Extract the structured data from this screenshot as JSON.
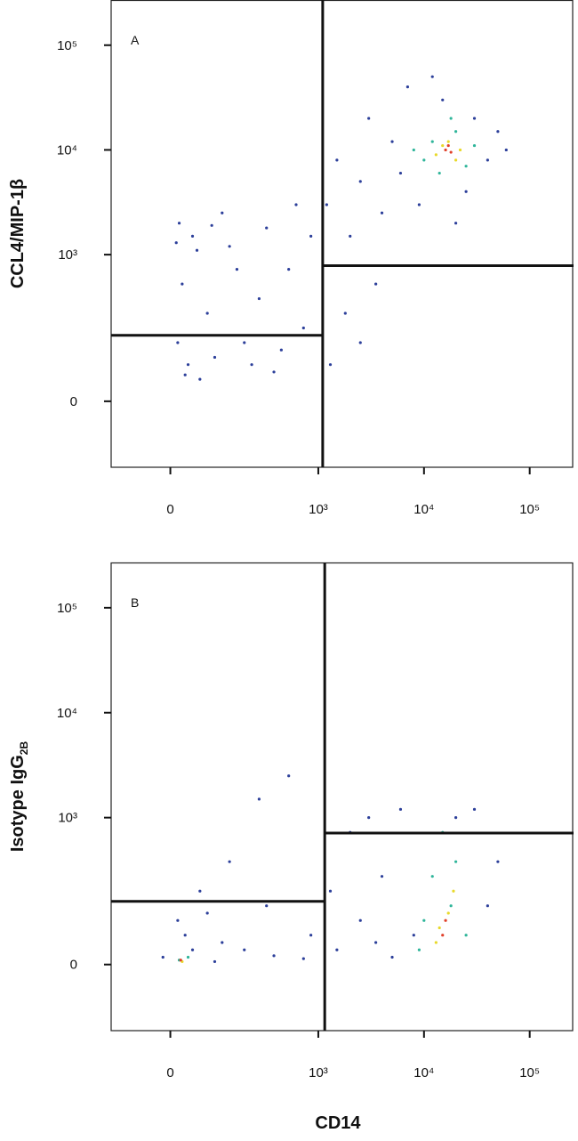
{
  "chart_data": [
    {
      "type": "scatter",
      "panel_label": "A",
      "ylabel": "CCL4/MIP-1β",
      "xscale": "biexponential",
      "yscale": "biexponential",
      "xlim": [
        -400,
        260000
      ],
      "ylim": [
        -450,
        270000
      ],
      "xticks": [
        0,
        {
          "value": 1000,
          "label": "10³"
        },
        {
          "value": 10000,
          "label": "10⁴"
        },
        {
          "value": 100000,
          "label": "10⁵"
        }
      ],
      "yticks": [
        0,
        {
          "value": 1000,
          "label": "10³"
        },
        {
          "value": 10000,
          "label": "10⁴"
        },
        {
          "value": 100000,
          "label": "10⁵"
        }
      ],
      "gates": {
        "x": 1100,
        "y_left": 450,
        "y_right": 925
      },
      "series": [
        {
          "color": "#2c3f9a",
          "x": [
            60,
            150,
            80,
            250,
            400,
            600,
            800,
            300,
            120,
            500,
            700,
            200,
            900,
            350,
            50,
            650,
            450,
            180,
            750,
            950,
            100,
            550,
            280,
            850,
            40,
            1500,
            2500,
            3000,
            5000,
            7000,
            1200,
            2000,
            4000,
            6000,
            9000,
            30000,
            40000,
            25000,
            50000,
            15000,
            12000,
            1800,
            2500,
            1300,
            3500,
            60000,
            20000
          ],
          "y": [
            2000,
            1500,
            800,
            600,
            1200,
            700,
            900,
            300,
            250,
            400,
            200,
            150,
            500,
            2500,
            400,
            1800,
            900,
            1100,
            350,
            1500,
            180,
            250,
            1900,
            3000,
            1300,
            8000,
            5000,
            20000,
            12000,
            40000,
            3000,
            1500,
            2500,
            6000,
            3000,
            20000,
            8000,
            4000,
            15000,
            30000,
            50000,
            600,
            400,
            250,
            800,
            10000,
            2000
          ]
        },
        {
          "color": "#2fb59a",
          "x": [
            10000,
            12000,
            20000,
            25000,
            8000,
            14000,
            18000,
            30000
          ],
          "y": [
            8000,
            12000,
            15000,
            7000,
            10000,
            6000,
            20000,
            11000
          ]
        },
        {
          "color": "#e8d92a",
          "x": [
            13000,
            17000,
            20000,
            15000,
            22000
          ],
          "y": [
            9000,
            12000,
            8000,
            11000,
            10000
          ]
        },
        {
          "color": "#e0402a",
          "x": [
            16000,
            18000,
            17000
          ],
          "y": [
            10000,
            9500,
            11000
          ]
        }
      ]
    },
    {
      "type": "scatter",
      "panel_label": "B",
      "ylabel": "Isotype IgG",
      "ylabel_sub": "2B",
      "xlabel": "CD14",
      "xscale": "biexponential",
      "yscale": "biexponential",
      "xlim": [
        -400,
        260000
      ],
      "ylim": [
        -450,
        270000
      ],
      "xticks": [
        0,
        {
          "value": 1000,
          "label": "10³"
        },
        {
          "value": 10000,
          "label": "10⁴"
        },
        {
          "value": 100000,
          "label": "10⁵"
        }
      ],
      "yticks": [
        0,
        {
          "value": 1000,
          "label": "10³"
        },
        {
          "value": 10000,
          "label": "10⁴"
        },
        {
          "value": 100000,
          "label": "10⁵"
        }
      ],
      "gates": {
        "x": 1150,
        "y_left": 430,
        "y_right": 895
      },
      "series": [
        {
          "color": "#2c3f9a",
          "x": [
            -50,
            100,
            300,
            500,
            700,
            900,
            200,
            400,
            600,
            800,
            250,
            150,
            350,
            50,
            950,
            650,
            1500,
            2500,
            4000,
            3000,
            6000,
            2000,
            1300,
            8000,
            40000,
            50000,
            30000,
            5000,
            3500,
            20000
          ],
          "y": [
            50,
            200,
            20,
            100,
            60,
            40,
            500,
            700,
            1500,
            2500,
            350,
            100,
            150,
            300,
            200,
            400,
            100,
            300,
            600,
            1000,
            1200,
            900,
            500,
            200,
            400,
            700,
            1200,
            50,
            150,
            1000
          ]
        },
        {
          "color": "#2fb59a",
          "x": [
            60,
            120,
            10000,
            12000,
            18000,
            25000,
            15000,
            20000,
            9000
          ],
          "y": [
            30,
            50,
            300,
            600,
            400,
            200,
            900,
            700,
            100
          ]
        },
        {
          "color": "#e8d92a",
          "x": [
            80,
            14000,
            17000,
            13000,
            19000
          ],
          "y": [
            20,
            250,
            350,
            150,
            500
          ]
        },
        {
          "color": "#e0402a",
          "x": [
            70,
            15000,
            16000
          ],
          "y": [
            30,
            200,
            300
          ]
        }
      ]
    }
  ]
}
